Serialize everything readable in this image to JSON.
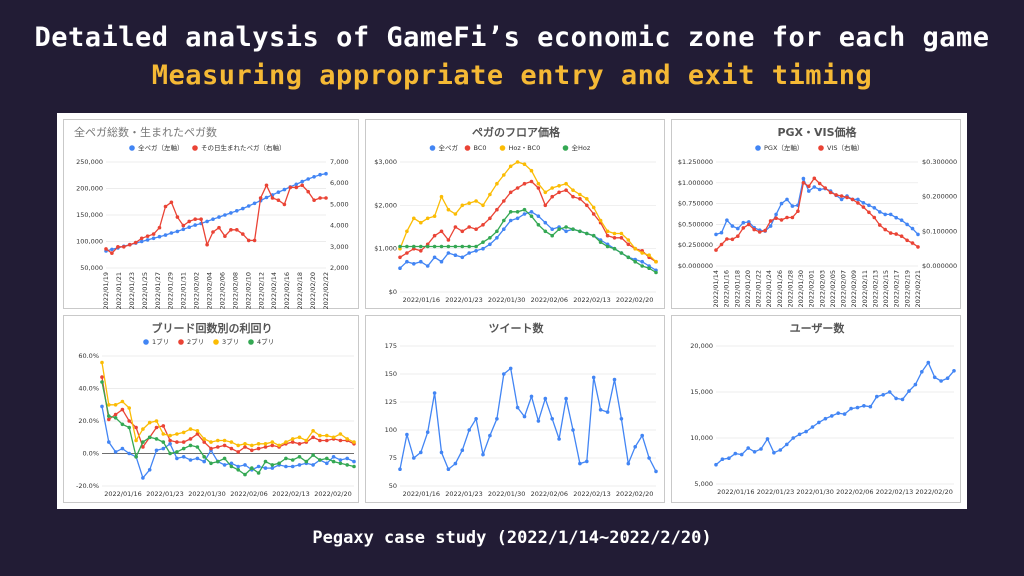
{
  "header": {
    "title": "Detailed analysis of GameFi’s economic zone for each game",
    "subtitle": "Measuring appropriate entry and exit timing"
  },
  "caption": "Pegaxy case study (2022/1/14~2022/2/20)",
  "colors": {
    "background": "#221c35",
    "subtitle": "#f5b935",
    "blue": "#4285f4",
    "red": "#ea4335",
    "yellow": "#fbbc04",
    "green": "#34a853"
  },
  "chart_data": [
    {
      "type": "line",
      "title": "全ペガ総数・生まれたペガ数",
      "ylim": [
        50000,
        250000
      ],
      "y_ticks": [
        "250,000",
        "200,000",
        "150,000",
        "100,000",
        "50,000"
      ],
      "y2lim": [
        2000,
        7000
      ],
      "y2_ticks": [
        "7,000",
        "6,000",
        "5,000",
        "4,000",
        "3,000",
        "2,000"
      ],
      "x_ticks": [
        "2022/01/19",
        "2022/01/21",
        "2022/01/23",
        "2022/01/25",
        "2022/01/27",
        "2022/01/29",
        "2022/01/31",
        "2022/02/02",
        "2022/02/04",
        "2022/02/06",
        "2022/02/08",
        "2022/02/10",
        "2022/02/12",
        "2022/02/14",
        "2022/02/16",
        "2022/02/18",
        "2022/02/20",
        "2022/02/22"
      ],
      "series": [
        {
          "name": "全ペガ（左軸）",
          "axis": "left",
          "color": "#4285f4",
          "values": [
            82000,
            85000,
            88000,
            91000,
            94000,
            97000,
            100000,
            103000,
            106000,
            109000,
            112000,
            116000,
            119000,
            123000,
            127000,
            131000,
            134000,
            138000,
            142000,
            146000,
            150000,
            154000,
            158000,
            162000,
            167000,
            172000,
            177000,
            183000,
            188000,
            193000,
            198000,
            203000,
            208000,
            213000,
            218000,
            222000,
            226000,
            228000
          ]
        },
        {
          "name": "その日生まれたペガ（右軸）",
          "axis": "right",
          "color": "#ea4335",
          "values": [
            2900,
            2700,
            3000,
            3000,
            3100,
            3200,
            3400,
            3500,
            3600,
            3900,
            4900,
            5100,
            4400,
            4000,
            4200,
            4300,
            4300,
            3100,
            3700,
            3900,
            3500,
            3800,
            3800,
            3600,
            3300,
            3300,
            5300,
            5900,
            5300,
            5200,
            5000,
            5800,
            5800,
            5900,
            5600,
            5200,
            5300,
            5300
          ]
        }
      ]
    },
    {
      "type": "line",
      "title": "ペガのフロア価格",
      "ylim": [
        0,
        3000
      ],
      "y_ticks": [
        "$3,000",
        "$2,000",
        "$1,000",
        "$0"
      ],
      "x_ticks": [
        "2022/01/16",
        "2022/01/23",
        "2022/01/30",
        "2022/02/06",
        "2022/02/13",
        "2022/02/20"
      ],
      "series": [
        {
          "name": "全ペガ",
          "color": "#4285f4",
          "values": [
            550,
            700,
            650,
            700,
            600,
            800,
            700,
            900,
            850,
            800,
            900,
            950,
            1000,
            1100,
            1250,
            1450,
            1650,
            1700,
            1800,
            1850,
            1750,
            1600,
            1450,
            1500,
            1400,
            1450,
            1400,
            1350,
            1300,
            1200,
            1100,
            1000,
            900,
            800,
            750,
            700,
            600,
            500
          ]
        },
        {
          "name": "BC0",
          "color": "#ea4335",
          "values": [
            800,
            900,
            1000,
            950,
            1100,
            1300,
            1400,
            1200,
            1500,
            1400,
            1500,
            1450,
            1550,
            1700,
            1900,
            2100,
            2300,
            2400,
            2500,
            2550,
            2400,
            2000,
            2200,
            2300,
            2350,
            2200,
            2150,
            2000,
            1800,
            1600,
            1300,
            1250,
            1250,
            1100,
            1000,
            950,
            800,
            700
          ]
        },
        {
          "name": "Hoz・BC0",
          "color": "#fbbc04",
          "values": [
            1000,
            1400,
            1700,
            1600,
            1700,
            1750,
            2200,
            1900,
            1800,
            2000,
            2050,
            2100,
            2000,
            2250,
            2500,
            2700,
            2900,
            3000,
            2950,
            2800,
            2500,
            2300,
            2400,
            2450,
            2500,
            2350,
            2250,
            2150,
            1950,
            1650,
            1400,
            1350,
            1350,
            1200,
            1000,
            900,
            850,
            700
          ]
        },
        {
          "name": "全Hoz",
          "color": "#34a853",
          "values": [
            1050,
            1050,
            1050,
            1050,
            1050,
            1050,
            1050,
            1050,
            1050,
            1050,
            1050,
            1050,
            1150,
            1250,
            1400,
            1650,
            1850,
            1850,
            1900,
            1750,
            1550,
            1400,
            1300,
            1450,
            1500,
            1450,
            1400,
            1350,
            1300,
            1150,
            1050,
            1000,
            900,
            800,
            700,
            600,
            550,
            450
          ]
        }
      ]
    },
    {
      "type": "line",
      "title": "PGX・VIS価格",
      "ylim": [
        0,
        1.25
      ],
      "y_ticks": [
        "$1.250000",
        "$1.000000",
        "$0.750000",
        "$0.500000",
        "$0.250000",
        "$0.000000"
      ],
      "y2lim": [
        0,
        0.3
      ],
      "y2_ticks": [
        "$0.300000",
        "$0.200000",
        "$0.100000",
        "$0.000000"
      ],
      "x_ticks": [
        "2022/01/14",
        "2022/01/16",
        "2022/01/18",
        "2022/01/20",
        "2022/01/22",
        "2022/01/24",
        "2022/01/26",
        "2022/01/28",
        "2022/01/30",
        "2022/02/01",
        "2022/02/03",
        "2022/02/05",
        "2022/02/07",
        "2022/02/09",
        "2022/02/11",
        "2022/02/13",
        "2022/02/15",
        "2022/02/17",
        "2022/02/19",
        "2022/02/21"
      ],
      "series": [
        {
          "name": "PGX（左軸）",
          "axis": "left",
          "color": "#4285f4",
          "values": [
            0.38,
            0.4,
            0.55,
            0.48,
            0.45,
            0.52,
            0.53,
            0.46,
            0.43,
            0.42,
            0.48,
            0.62,
            0.75,
            0.8,
            0.72,
            0.73,
            1.05,
            0.9,
            0.95,
            0.92,
            0.93,
            0.9,
            0.85,
            0.8,
            0.84,
            0.8,
            0.8,
            0.76,
            0.73,
            0.7,
            0.65,
            0.62,
            0.62,
            0.58,
            0.55,
            0.5,
            0.45,
            0.38
          ]
        },
        {
          "name": "VIS（右軸）",
          "axis": "right",
          "color": "#ea4335",
          "values": [
            0.046,
            0.062,
            0.078,
            0.077,
            0.086,
            0.11,
            0.12,
            0.105,
            0.098,
            0.102,
            0.13,
            0.138,
            0.133,
            0.14,
            0.14,
            0.158,
            0.24,
            0.23,
            0.253,
            0.238,
            0.225,
            0.212,
            0.205,
            0.202,
            0.198,
            0.192,
            0.182,
            0.17,
            0.155,
            0.14,
            0.118,
            0.105,
            0.095,
            0.092,
            0.086,
            0.074,
            0.066,
            0.055
          ]
        }
      ]
    },
    {
      "type": "line",
      "title": "ブリード回数別の利回り",
      "ylim": [
        -20,
        60
      ],
      "y_ticks": [
        "60.0%",
        "40.0%",
        "20.0%",
        "0.0%",
        "-20.0%"
      ],
      "x_ticks": [
        "2022/01/16",
        "2022/01/23",
        "2022/01/30",
        "2022/02/06",
        "2022/02/13",
        "2022/02/20"
      ],
      "series": [
        {
          "name": "1ブリ",
          "color": "#4285f4",
          "values": [
            29,
            7,
            1,
            3,
            0,
            -2,
            -15,
            -10,
            2,
            3,
            6,
            -3,
            -2,
            -4,
            -3,
            -5,
            2,
            -5,
            -7,
            -6,
            -8,
            -7,
            -10,
            -8,
            -9,
            -9,
            -7,
            -8,
            -8,
            -7,
            -6,
            -7,
            -4,
            -6,
            -2,
            -4,
            -3,
            -5
          ]
        },
        {
          "name": "2ブリ",
          "color": "#ea4335",
          "values": [
            47,
            21,
            24,
            27,
            20,
            16,
            4,
            10,
            16,
            17,
            8,
            7,
            7,
            9,
            12,
            7,
            3,
            4,
            5,
            3,
            1,
            4,
            2,
            3,
            4,
            5,
            4,
            6,
            7,
            6,
            7,
            10,
            8,
            8,
            9,
            8,
            8,
            6
          ]
        },
        {
          "name": "3ブリ",
          "color": "#fbbc04",
          "values": [
            56,
            30,
            30,
            32,
            28,
            8,
            15,
            19,
            20,
            12,
            11,
            12,
            13,
            15,
            14,
            9,
            7,
            8,
            8,
            7,
            5,
            6,
            5,
            6,
            6,
            7,
            5,
            7,
            9,
            10,
            8,
            14,
            11,
            11,
            10,
            12,
            9,
            7
          ]
        },
        {
          "name": "4ブリ",
          "color": "#34a853",
          "values": [
            44,
            23,
            22,
            18,
            16,
            -2,
            7,
            10,
            9,
            7,
            0,
            1,
            3,
            5,
            4,
            -2,
            -6,
            -5,
            -3,
            -8,
            -10,
            -13,
            -9,
            -12,
            -5,
            -7,
            -6,
            -3,
            -4,
            -2,
            -5,
            -1,
            -4,
            -3,
            -5,
            -6,
            -7,
            -8
          ]
        }
      ]
    },
    {
      "type": "line",
      "title": "ツイート数",
      "ylim": [
        50,
        175
      ],
      "y_ticks": [
        "175",
        "150",
        "125",
        "100",
        "75",
        "50"
      ],
      "x_ticks": [
        "2022/01/16",
        "2022/01/23",
        "2022/01/30",
        "2022/02/06",
        "2022/02/13",
        "2022/02/20"
      ],
      "series": [
        {
          "name": "",
          "color": "#4285f4",
          "values": [
            65,
            96,
            75,
            80,
            98,
            133,
            80,
            65,
            70,
            82,
            100,
            110,
            78,
            95,
            110,
            150,
            155,
            120,
            112,
            130,
            108,
            128,
            110,
            92,
            128,
            100,
            70,
            72,
            147,
            118,
            116,
            145,
            110,
            70,
            85,
            95,
            75,
            63
          ]
        }
      ]
    },
    {
      "type": "line",
      "title": "ユーザー数",
      "ylim": [
        5000,
        20000
      ],
      "y_ticks": [
        "20,000",
        "15,000",
        "10,000",
        "5,000"
      ],
      "x_ticks": [
        "2022/01/16",
        "2022/01/23",
        "2022/01/30",
        "2022/02/06",
        "2022/02/13",
        "2022/02/20"
      ],
      "series": [
        {
          "name": "",
          "color": "#4285f4",
          "values": [
            7100,
            7700,
            7800,
            8300,
            8200,
            8900,
            8500,
            8800,
            9900,
            8400,
            8700,
            9300,
            10000,
            10400,
            10700,
            11200,
            11700,
            12100,
            12400,
            12700,
            12600,
            13200,
            13300,
            13500,
            13400,
            14500,
            14700,
            15000,
            14300,
            14200,
            15100,
            15800,
            17200,
            18200,
            16600,
            16200,
            16500,
            17300
          ]
        }
      ]
    }
  ]
}
